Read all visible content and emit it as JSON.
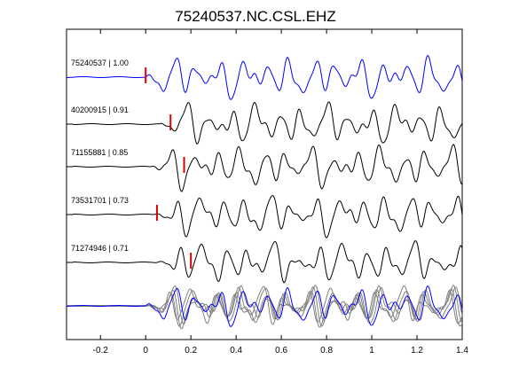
{
  "chart_data": {
    "type": "line",
    "title": "75240537.NC.CSL.EHZ",
    "xlabel": "",
    "ylabel": "",
    "xlim": [
      -0.35,
      1.4
    ],
    "x_ticks": [
      -0.2,
      0,
      0.2,
      0.4,
      0.6,
      0.8,
      1,
      1.2,
      1.4
    ],
    "x_tick_labels": [
      "-0.2",
      "0",
      "0.2",
      "0.4",
      "0.6",
      "0.8",
      "1",
      "1.2",
      "1.4"
    ],
    "grid": false,
    "legend": "none",
    "colors": {
      "master": "#0000ff",
      "trace": "#000000",
      "stack": "#808080",
      "pick": "#dd0000"
    },
    "traces": [
      {
        "name": "75240537 | 1.00",
        "label": "75240537 | 1.00",
        "pick_time": 0.0,
        "shift": 0.0,
        "color": "#0000ff"
      },
      {
        "name": "40200915 | 0.91",
        "label": "40200915 | 0.91",
        "pick_time": 0.11,
        "shift": 0.06,
        "color": "#000000"
      },
      {
        "name": "71155881 | 0.85",
        "label": "71155881 | 0.85",
        "pick_time": 0.17,
        "shift": 0.0,
        "color": "#000000"
      },
      {
        "name": "73531701 | 0.73",
        "label": "73531701 | 0.73",
        "pick_time": 0.05,
        "shift": 0.03,
        "color": "#000000"
      },
      {
        "name": "71274946 | 0.71",
        "label": "71274946 | 0.71",
        "pick_time": 0.2,
        "shift": 0.05,
        "color": "#000000"
      }
    ]
  }
}
